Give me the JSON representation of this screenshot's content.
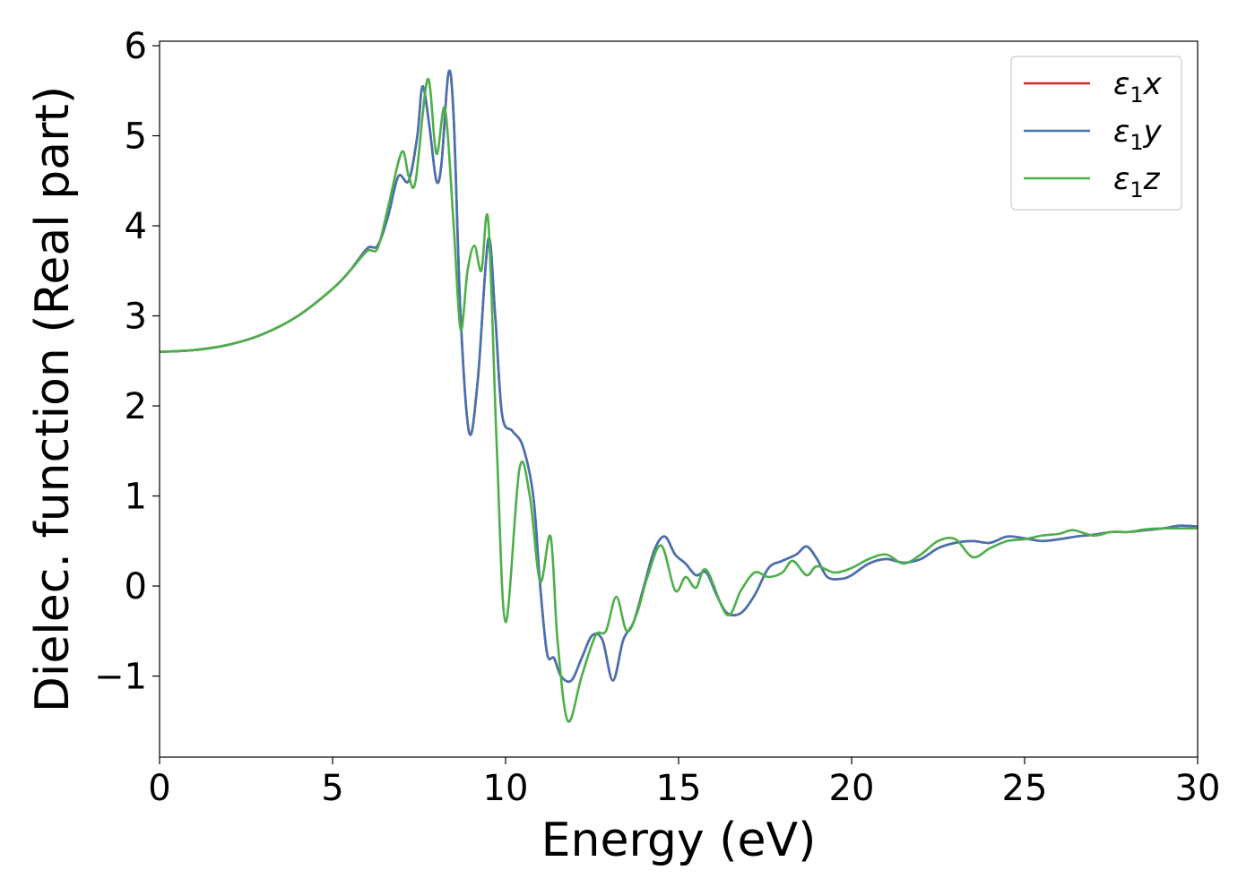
{
  "chart_data": {
    "type": "line",
    "title": "",
    "xlabel": "Energy (eV)",
    "ylabel": "Dielec. function (Real part)",
    "xlim": [
      0,
      30
    ],
    "ylim": [
      -1.9,
      6.05
    ],
    "xticks": [
      0,
      5,
      10,
      15,
      20,
      25,
      30
    ],
    "xtick_labels": [
      "0",
      "5",
      "10",
      "15",
      "20",
      "25",
      "30"
    ],
    "yticks": [
      -1,
      0,
      1,
      2,
      3,
      4,
      5,
      6
    ],
    "ytick_labels": [
      "−1",
      "0",
      "1",
      "2",
      "3",
      "4",
      "5",
      "6"
    ],
    "grid": false,
    "legend_position": "top-right",
    "series": [
      {
        "name": "ε₁x",
        "legend": {
          "sym": "ε",
          "sub": "1",
          "var": "x"
        },
        "color": "#d62728",
        "points": [
          [
            0,
            2.6
          ],
          [
            1,
            2.62
          ],
          [
            2,
            2.68
          ],
          [
            3,
            2.8
          ],
          [
            4,
            3.0
          ],
          [
            5,
            3.3
          ],
          [
            5.5,
            3.5
          ],
          [
            6,
            3.75
          ],
          [
            6.3,
            3.78
          ],
          [
            6.6,
            4.1
          ],
          [
            6.9,
            4.55
          ],
          [
            7.2,
            4.5
          ],
          [
            7.45,
            5.0
          ],
          [
            7.6,
            5.55
          ],
          [
            7.8,
            5.1
          ],
          [
            8.0,
            4.5
          ],
          [
            8.15,
            4.7
          ],
          [
            8.35,
            5.7
          ],
          [
            8.5,
            5.2
          ],
          [
            8.7,
            3.0
          ],
          [
            8.95,
            1.7
          ],
          [
            9.2,
            2.3
          ],
          [
            9.5,
            3.85
          ],
          [
            9.7,
            3.0
          ],
          [
            9.9,
            1.9
          ],
          [
            10.2,
            1.72
          ],
          [
            10.5,
            1.55
          ],
          [
            10.8,
            1.0
          ],
          [
            11.0,
            0.0
          ],
          [
            11.2,
            -0.75
          ],
          [
            11.4,
            -0.8
          ],
          [
            11.6,
            -1.0
          ],
          [
            11.9,
            -1.05
          ],
          [
            12.2,
            -0.8
          ],
          [
            12.5,
            -0.55
          ],
          [
            12.8,
            -0.6
          ],
          [
            13.1,
            -1.05
          ],
          [
            13.4,
            -0.6
          ],
          [
            13.7,
            -0.4
          ],
          [
            14.0,
            0.0
          ],
          [
            14.3,
            0.4
          ],
          [
            14.6,
            0.55
          ],
          [
            14.9,
            0.35
          ],
          [
            15.2,
            0.25
          ],
          [
            15.5,
            0.12
          ],
          [
            15.8,
            0.15
          ],
          [
            16.1,
            -0.1
          ],
          [
            16.4,
            -0.3
          ],
          [
            16.8,
            -0.3
          ],
          [
            17.2,
            -0.1
          ],
          [
            17.6,
            0.2
          ],
          [
            18.0,
            0.28
          ],
          [
            18.4,
            0.35
          ],
          [
            18.7,
            0.44
          ],
          [
            19.0,
            0.3
          ],
          [
            19.3,
            0.1
          ],
          [
            19.7,
            0.08
          ],
          [
            20.0,
            0.12
          ],
          [
            20.5,
            0.25
          ],
          [
            21.0,
            0.3
          ],
          [
            21.5,
            0.26
          ],
          [
            22.0,
            0.3
          ],
          [
            22.5,
            0.42
          ],
          [
            23.0,
            0.48
          ],
          [
            23.5,
            0.5
          ],
          [
            24.0,
            0.48
          ],
          [
            24.5,
            0.55
          ],
          [
            25.0,
            0.53
          ],
          [
            25.5,
            0.5
          ],
          [
            26.0,
            0.52
          ],
          [
            26.5,
            0.55
          ],
          [
            27.0,
            0.57
          ],
          [
            27.5,
            0.6
          ],
          [
            28.0,
            0.6
          ],
          [
            28.5,
            0.62
          ],
          [
            29.0,
            0.64
          ],
          [
            29.5,
            0.67
          ],
          [
            30.0,
            0.66
          ]
        ]
      },
      {
        "name": "ε₁y",
        "legend": {
          "sym": "ε",
          "sub": "1",
          "var": "y"
        },
        "color": "#4572b0",
        "points": [
          [
            0,
            2.6
          ],
          [
            1,
            2.62
          ],
          [
            2,
            2.68
          ],
          [
            3,
            2.8
          ],
          [
            4,
            3.0
          ],
          [
            5,
            3.3
          ],
          [
            5.5,
            3.5
          ],
          [
            6,
            3.75
          ],
          [
            6.3,
            3.78
          ],
          [
            6.6,
            4.1
          ],
          [
            6.9,
            4.55
          ],
          [
            7.2,
            4.5
          ],
          [
            7.45,
            5.0
          ],
          [
            7.6,
            5.55
          ],
          [
            7.8,
            5.1
          ],
          [
            8.0,
            4.5
          ],
          [
            8.15,
            4.7
          ],
          [
            8.35,
            5.7
          ],
          [
            8.5,
            5.2
          ],
          [
            8.7,
            3.0
          ],
          [
            8.95,
            1.7
          ],
          [
            9.2,
            2.3
          ],
          [
            9.5,
            3.85
          ],
          [
            9.7,
            3.0
          ],
          [
            9.9,
            1.9
          ],
          [
            10.2,
            1.72
          ],
          [
            10.5,
            1.55
          ],
          [
            10.8,
            1.0
          ],
          [
            11.0,
            0.0
          ],
          [
            11.2,
            -0.75
          ],
          [
            11.4,
            -0.8
          ],
          [
            11.6,
            -1.0
          ],
          [
            11.9,
            -1.05
          ],
          [
            12.2,
            -0.8
          ],
          [
            12.5,
            -0.55
          ],
          [
            12.8,
            -0.6
          ],
          [
            13.1,
            -1.05
          ],
          [
            13.4,
            -0.6
          ],
          [
            13.7,
            -0.4
          ],
          [
            14.0,
            0.0
          ],
          [
            14.3,
            0.4
          ],
          [
            14.6,
            0.55
          ],
          [
            14.9,
            0.35
          ],
          [
            15.2,
            0.25
          ],
          [
            15.5,
            0.12
          ],
          [
            15.8,
            0.15
          ],
          [
            16.1,
            -0.1
          ],
          [
            16.4,
            -0.3
          ],
          [
            16.8,
            -0.3
          ],
          [
            17.2,
            -0.1
          ],
          [
            17.6,
            0.2
          ],
          [
            18.0,
            0.28
          ],
          [
            18.4,
            0.35
          ],
          [
            18.7,
            0.44
          ],
          [
            19.0,
            0.3
          ],
          [
            19.3,
            0.1
          ],
          [
            19.7,
            0.08
          ],
          [
            20.0,
            0.12
          ],
          [
            20.5,
            0.25
          ],
          [
            21.0,
            0.3
          ],
          [
            21.5,
            0.26
          ],
          [
            22.0,
            0.3
          ],
          [
            22.5,
            0.42
          ],
          [
            23.0,
            0.48
          ],
          [
            23.5,
            0.5
          ],
          [
            24.0,
            0.48
          ],
          [
            24.5,
            0.55
          ],
          [
            25.0,
            0.53
          ],
          [
            25.5,
            0.5
          ],
          [
            26.0,
            0.52
          ],
          [
            26.5,
            0.55
          ],
          [
            27.0,
            0.57
          ],
          [
            27.5,
            0.6
          ],
          [
            28.0,
            0.6
          ],
          [
            28.5,
            0.62
          ],
          [
            29.0,
            0.64
          ],
          [
            29.5,
            0.67
          ],
          [
            30.0,
            0.66
          ]
        ]
      },
      {
        "name": "ε₁z",
        "legend": {
          "sym": "ε",
          "sub": "1",
          "var": "z"
        },
        "color": "#4daf4a",
        "points": [
          [
            0,
            2.6
          ],
          [
            1,
            2.62
          ],
          [
            2,
            2.68
          ],
          [
            3,
            2.8
          ],
          [
            4,
            3.0
          ],
          [
            5,
            3.3
          ],
          [
            5.5,
            3.5
          ],
          [
            6,
            3.72
          ],
          [
            6.3,
            3.75
          ],
          [
            6.6,
            4.2
          ],
          [
            7.0,
            4.82
          ],
          [
            7.2,
            4.55
          ],
          [
            7.4,
            4.5
          ],
          [
            7.75,
            5.63
          ],
          [
            8.0,
            4.8
          ],
          [
            8.25,
            5.3
          ],
          [
            8.5,
            4.0
          ],
          [
            8.7,
            2.85
          ],
          [
            8.9,
            3.5
          ],
          [
            9.1,
            3.78
          ],
          [
            9.3,
            3.5
          ],
          [
            9.5,
            4.05
          ],
          [
            9.75,
            1.5
          ],
          [
            10.0,
            -0.4
          ],
          [
            10.4,
            1.3
          ],
          [
            10.7,
            1.0
          ],
          [
            11.0,
            0.05
          ],
          [
            11.3,
            0.55
          ],
          [
            11.5,
            -0.6
          ],
          [
            11.8,
            -1.5
          ],
          [
            12.2,
            -1.0
          ],
          [
            12.6,
            -0.55
          ],
          [
            12.9,
            -0.5
          ],
          [
            13.2,
            -0.12
          ],
          [
            13.5,
            -0.5
          ],
          [
            13.8,
            -0.3
          ],
          [
            14.1,
            0.1
          ],
          [
            14.5,
            0.45
          ],
          [
            14.9,
            -0.05
          ],
          [
            15.2,
            0.1
          ],
          [
            15.5,
            -0.02
          ],
          [
            15.8,
            0.18
          ],
          [
            16.4,
            -0.32
          ],
          [
            16.8,
            -0.05
          ],
          [
            17.2,
            0.15
          ],
          [
            17.6,
            0.1
          ],
          [
            18.0,
            0.15
          ],
          [
            18.3,
            0.28
          ],
          [
            18.7,
            0.12
          ],
          [
            19.0,
            0.22
          ],
          [
            19.5,
            0.15
          ],
          [
            20.0,
            0.2
          ],
          [
            20.5,
            0.3
          ],
          [
            21.0,
            0.35
          ],
          [
            21.5,
            0.25
          ],
          [
            22.0,
            0.35
          ],
          [
            22.5,
            0.5
          ],
          [
            23.0,
            0.52
          ],
          [
            23.5,
            0.32
          ],
          [
            24.0,
            0.42
          ],
          [
            24.5,
            0.5
          ],
          [
            25.0,
            0.52
          ],
          [
            25.5,
            0.56
          ],
          [
            26.0,
            0.58
          ],
          [
            26.4,
            0.62
          ],
          [
            27.0,
            0.56
          ],
          [
            27.5,
            0.6
          ],
          [
            28.0,
            0.6
          ],
          [
            28.5,
            0.63
          ],
          [
            29.0,
            0.64
          ],
          [
            29.5,
            0.64
          ],
          [
            30.0,
            0.64
          ]
        ]
      }
    ]
  }
}
